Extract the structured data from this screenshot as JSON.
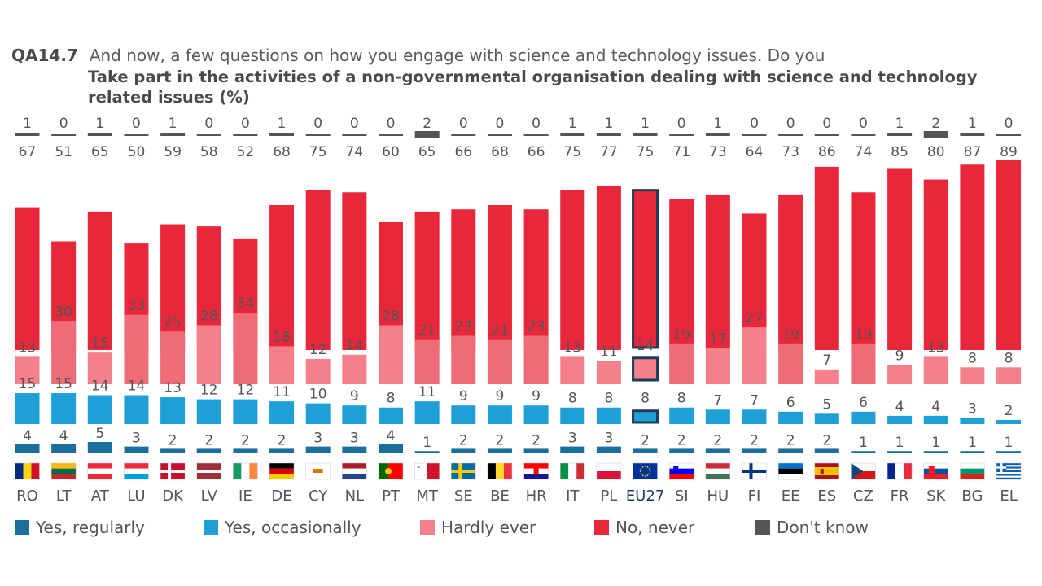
{
  "header": {
    "code": "QA14.7",
    "question": "And now, a few questions on how you engage with science and technology issues. Do you",
    "subtitle": "Take part in the activities of a non-governmental organisation dealing with science and technology related issues (%)"
  },
  "colors": {
    "regularly": "#1a6f9e",
    "occasionally": "#1ea0d7",
    "hardly": "#f5808a",
    "never": "#e8273a",
    "dontknow": "#555555",
    "highlight_border": "#1f3b5c"
  },
  "legend": [
    {
      "key": "regularly",
      "label": "Yes, regularly"
    },
    {
      "key": "occasionally",
      "label": "Yes, occasionally"
    },
    {
      "key": "hardly",
      "label": "Hardly ever"
    },
    {
      "key": "never",
      "label": "No, never"
    },
    {
      "key": "dontknow",
      "label": "Don't know"
    }
  ],
  "chart_data": {
    "type": "bar",
    "categories": [
      "RO",
      "LT",
      "AT",
      "LU",
      "DK",
      "LV",
      "IE",
      "DE",
      "CY",
      "NL",
      "PT",
      "MT",
      "SE",
      "BE",
      "HR",
      "IT",
      "PL",
      "EU27",
      "SI",
      "HU",
      "FI",
      "EE",
      "ES",
      "CZ",
      "FR",
      "SK",
      "BG",
      "EL"
    ],
    "highlight": "EU27",
    "flag_icons": [
      "flag-ro",
      "flag-lt",
      "flag-at",
      "flag-lu",
      "flag-dk",
      "flag-lv",
      "flag-ie",
      "flag-de",
      "flag-cy",
      "flag-nl",
      "flag-pt",
      "flag-mt",
      "flag-se",
      "flag-be",
      "flag-hr",
      "flag-it",
      "flag-pl",
      "flag-eu",
      "flag-si",
      "flag-hu",
      "flag-fi",
      "flag-ee",
      "flag-es",
      "flag-cz",
      "flag-fr",
      "flag-sk",
      "flag-bg",
      "flag-el"
    ],
    "series": [
      {
        "name": "Yes, regularly",
        "key": "regularly",
        "values": [
          4,
          4,
          5,
          3,
          2,
          2,
          2,
          2,
          3,
          3,
          4,
          1,
          2,
          2,
          2,
          3,
          3,
          2,
          2,
          2,
          2,
          2,
          2,
          1,
          1,
          1,
          1,
          1
        ]
      },
      {
        "name": "Yes, occasionally",
        "key": "occasionally",
        "values": [
          15,
          15,
          14,
          14,
          13,
          12,
          12,
          11,
          10,
          9,
          8,
          11,
          9,
          9,
          9,
          8,
          8,
          8,
          8,
          7,
          7,
          6,
          5,
          6,
          4,
          4,
          3,
          2
        ]
      },
      {
        "name": "Hardly ever",
        "key": "hardly",
        "values": [
          13,
          30,
          15,
          33,
          25,
          28,
          34,
          18,
          12,
          14,
          28,
          21,
          23,
          21,
          23,
          13,
          11,
          14,
          19,
          17,
          27,
          19,
          7,
          19,
          9,
          13,
          8,
          8
        ]
      },
      {
        "name": "No, never",
        "key": "never",
        "values": [
          67,
          51,
          65,
          50,
          59,
          58,
          52,
          68,
          75,
          74,
          60,
          65,
          66,
          68,
          66,
          75,
          77,
          75,
          71,
          73,
          64,
          73,
          86,
          74,
          85,
          80,
          87,
          89
        ]
      },
      {
        "name": "Don't know",
        "key": "dontknow",
        "values": [
          1,
          0,
          1,
          0,
          1,
          0,
          0,
          1,
          0,
          0,
          0,
          2,
          0,
          0,
          0,
          1,
          1,
          1,
          0,
          1,
          0,
          0,
          0,
          0,
          1,
          2,
          1,
          0
        ]
      }
    ]
  }
}
